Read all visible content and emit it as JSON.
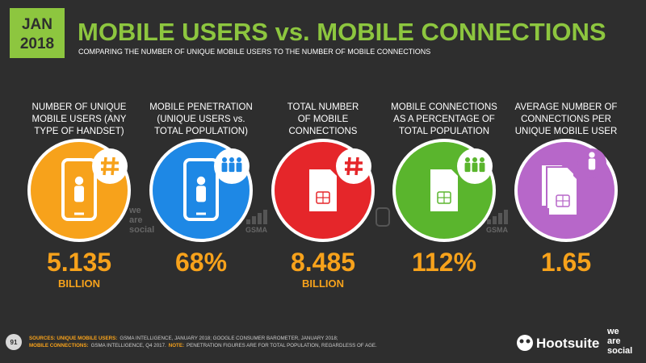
{
  "header": {
    "badge": [
      "JAN",
      "2018"
    ],
    "title": "MOBILE USERS vs. MOBILE CONNECTIONS",
    "subtitle": "COMPARING THE NUMBER OF UNIQUE MOBILE USERS TO THE NUMBER OF MOBILE CONNECTIONS"
  },
  "stats": [
    {
      "label": [
        "NUMBER OF UNIQUE",
        "MOBILE USERS (ANY",
        "TYPE OF HANDSET)"
      ],
      "value": "5.135",
      "unit": "BILLION"
    },
    {
      "label": [
        "MOBILE PENETRATION",
        "(UNIQUE USERS vs.",
        "TOTAL POPULATION)"
      ],
      "value": "68%"
    },
    {
      "label": [
        "TOTAL NUMBER",
        "OF MOBILE",
        "CONNECTIONS"
      ],
      "value": "8.485",
      "unit": "BILLION"
    },
    {
      "label": [
        "MOBILE CONNECTIONS",
        "AS A PERCENTAGE OF",
        "TOTAL POPULATION"
      ],
      "value": "112%"
    },
    {
      "label": [
        "AVERAGE NUMBER OF",
        "CONNECTIONS PER",
        "UNIQUE MOBILE USER"
      ],
      "value": "1.65"
    }
  ],
  "watermarks": {
    "was": [
      "we",
      "are",
      "social"
    ],
    "gsma": [
      "GSMA",
      "GSMA"
    ]
  },
  "footer": {
    "page": "91",
    "sources": [
      [
        "SOURCES: UNIQUE MOBILE USERS:",
        "GSMA INTELLIGENCE, JANUARY 2018; GOOGLE CONSUMER BAROMETER, JANUARY 2018;"
      ],
      [
        "MOBILE CONNECTIONS:",
        "GSMA INTELLIGENCE, Q4 2017.",
        "NOTE:",
        "PENETRATION FIGURES ARE FOR TOTAL POPULATION, REGARDLESS OF AGE."
      ]
    ],
    "hootsuite": "Hootsuite",
    "was": [
      "we",
      "are",
      "social"
    ]
  }
}
